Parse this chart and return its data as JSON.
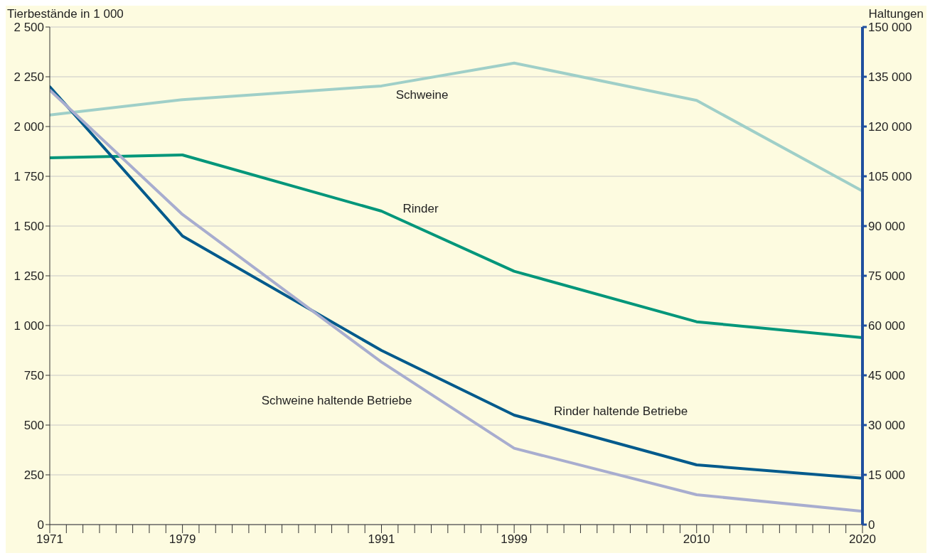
{
  "chart_data": {
    "type": "line",
    "ylabel": "Tierbestände in 1 000",
    "y2label": "Haltungen",
    "x": [
      1971,
      1979,
      1991,
      1999,
      2010,
      2020
    ],
    "series": [
      {
        "name": "Schweine",
        "color": "#9fcfc8",
        "values": [
          2058,
          2135,
          2204,
          2319,
          2131,
          1676
        ]
      },
      {
        "name": "Rinder",
        "color": "#00967a",
        "values": [
          1843,
          1857,
          1575,
          1273,
          1019,
          939
        ]
      },
      {
        "name": "Rinder haltende Betriebe",
        "color": "#005a8c",
        "axis": "y2",
        "values": [
          132000,
          87000,
          52500,
          33000,
          18000,
          14000
        ]
      },
      {
        "name": "Schweine haltende Betriebe",
        "color": "#a8adcf",
        "axis": "y2",
        "values": [
          131000,
          93500,
          49000,
          23000,
          9000,
          4000
        ]
      }
    ],
    "xlim": [
      1971,
      2020
    ],
    "xticks": [
      1971,
      {
        "value": 1972,
        "label": null
      },
      {
        "value": 1973,
        "label": null
      },
      {
        "value": 1974,
        "label": null
      },
      {
        "value": 1975,
        "label": null
      },
      {
        "value": 1976,
        "label": null
      },
      {
        "value": 1977,
        "label": null
      },
      {
        "value": 1978,
        "label": null
      },
      1979,
      {
        "value": 1980,
        "label": null
      },
      {
        "value": 1981,
        "label": null
      },
      {
        "value": 1982,
        "label": null
      },
      {
        "value": 1983,
        "label": null
      },
      {
        "value": 1984,
        "label": null
      },
      {
        "value": 1985,
        "label": null
      },
      {
        "value": 1986,
        "label": null
      },
      {
        "value": 1987,
        "label": null
      },
      {
        "value": 1988,
        "label": null
      },
      {
        "value": 1989,
        "label": null
      },
      {
        "value": 1990,
        "label": null
      },
      1991,
      {
        "value": 1992,
        "label": null
      },
      {
        "value": 1993,
        "label": null
      },
      {
        "value": 1994,
        "label": null
      },
      {
        "value": 1995,
        "label": null
      },
      {
        "value": 1996,
        "label": null
      },
      {
        "value": 1997,
        "label": null
      },
      {
        "value": 1998,
        "label": null
      },
      1999,
      {
        "value": 2000,
        "label": null
      },
      {
        "value": 2001,
        "label": null
      },
      {
        "value": 2002,
        "label": null
      },
      {
        "value": 2003,
        "label": null
      },
      {
        "value": 2004,
        "label": null
      },
      {
        "value": 2005,
        "label": null
      },
      {
        "value": 2006,
        "label": null
      },
      {
        "value": 2007,
        "label": null
      },
      {
        "value": 2008,
        "label": null
      },
      {
        "value": 2009,
        "label": null
      },
      2010,
      {
        "value": 2011,
        "label": null
      },
      {
        "value": 2012,
        "label": null
      },
      {
        "value": 2013,
        "label": null
      },
      {
        "value": 2014,
        "label": null
      },
      {
        "value": 2015,
        "label": null
      },
      {
        "value": 2016,
        "label": null
      },
      {
        "value": 2017,
        "label": null
      },
      {
        "value": 2018,
        "label": null
      },
      {
        "value": 2019,
        "label": null
      },
      2020
    ],
    "ylim": [
      0,
      2500
    ],
    "yticks": [
      0,
      250,
      500,
      750,
      {
        "value": 1000,
        "label": "1 000"
      },
      {
        "value": 1250,
        "label": "1 250"
      },
      {
        "value": 1500,
        "label": "1 500"
      },
      {
        "value": 1750,
        "label": "1 750"
      },
      {
        "value": 2000,
        "label": "2 000"
      },
      {
        "value": 2250,
        "label": "2 250"
      },
      {
        "value": 2500,
        "label": "2 500"
      }
    ],
    "y2lim": [
      0,
      150000
    ],
    "y2ticks": [
      0,
      {
        "value": 15000,
        "label": "15 000"
      },
      {
        "value": 30000,
        "label": "30 000"
      },
      {
        "value": 45000,
        "label": "45 000"
      },
      {
        "value": 60000,
        "label": "60 000"
      },
      {
        "value": 75000,
        "label": "75 000"
      },
      {
        "value": 90000,
        "label": "90 000"
      },
      {
        "value": 105000,
        "label": "105 000"
      },
      {
        "value": 120000,
        "label": "120 000"
      },
      {
        "value": 135000,
        "label": "135 000"
      },
      {
        "value": 150000,
        "label": "150 000"
      }
    ],
    "grid": "y",
    "legend": false,
    "marker": "none",
    "line_style": "solid"
  }
}
